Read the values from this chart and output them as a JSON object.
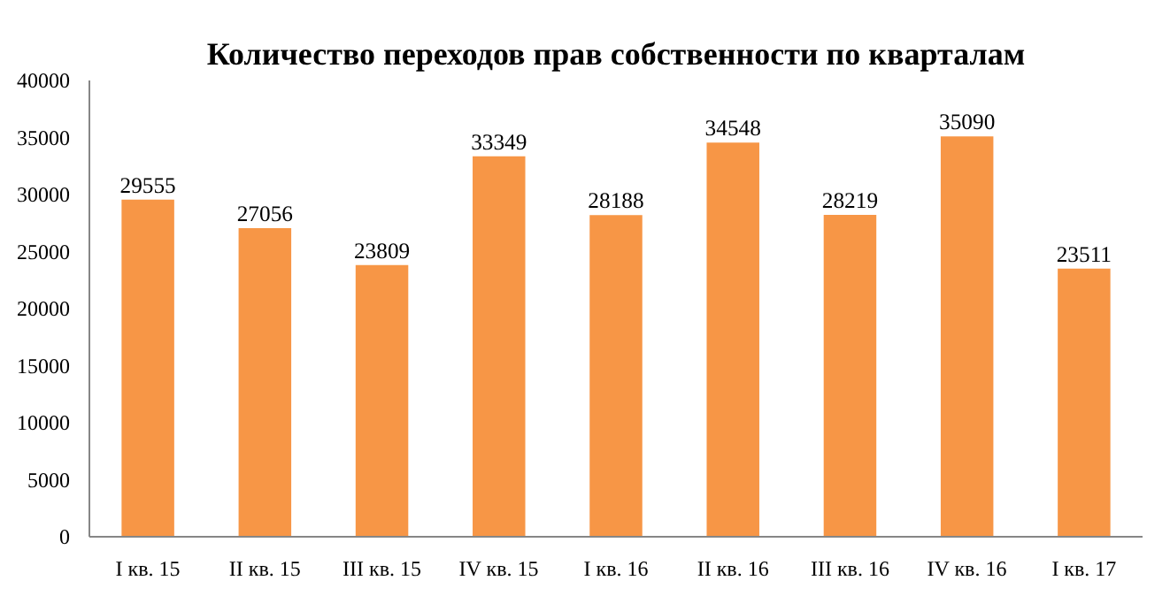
{
  "chart_data": {
    "type": "bar",
    "title": "Количество переходов прав собственности по кварталам",
    "categories": [
      "I кв. 15",
      "II кв. 15",
      "III кв. 15",
      "IV кв. 15",
      "I кв. 16",
      "II кв. 16",
      "III кв. 16",
      "IV кв. 16",
      "I кв. 17"
    ],
    "values": [
      29555,
      27056,
      23809,
      33349,
      28188,
      34548,
      28219,
      35090,
      23511
    ],
    "color": "#f79646",
    "ylim": [
      0,
      40000
    ],
    "yticks": [
      0,
      5000,
      10000,
      15000,
      20000,
      25000,
      30000,
      35000,
      40000
    ],
    "data_labels": true
  }
}
